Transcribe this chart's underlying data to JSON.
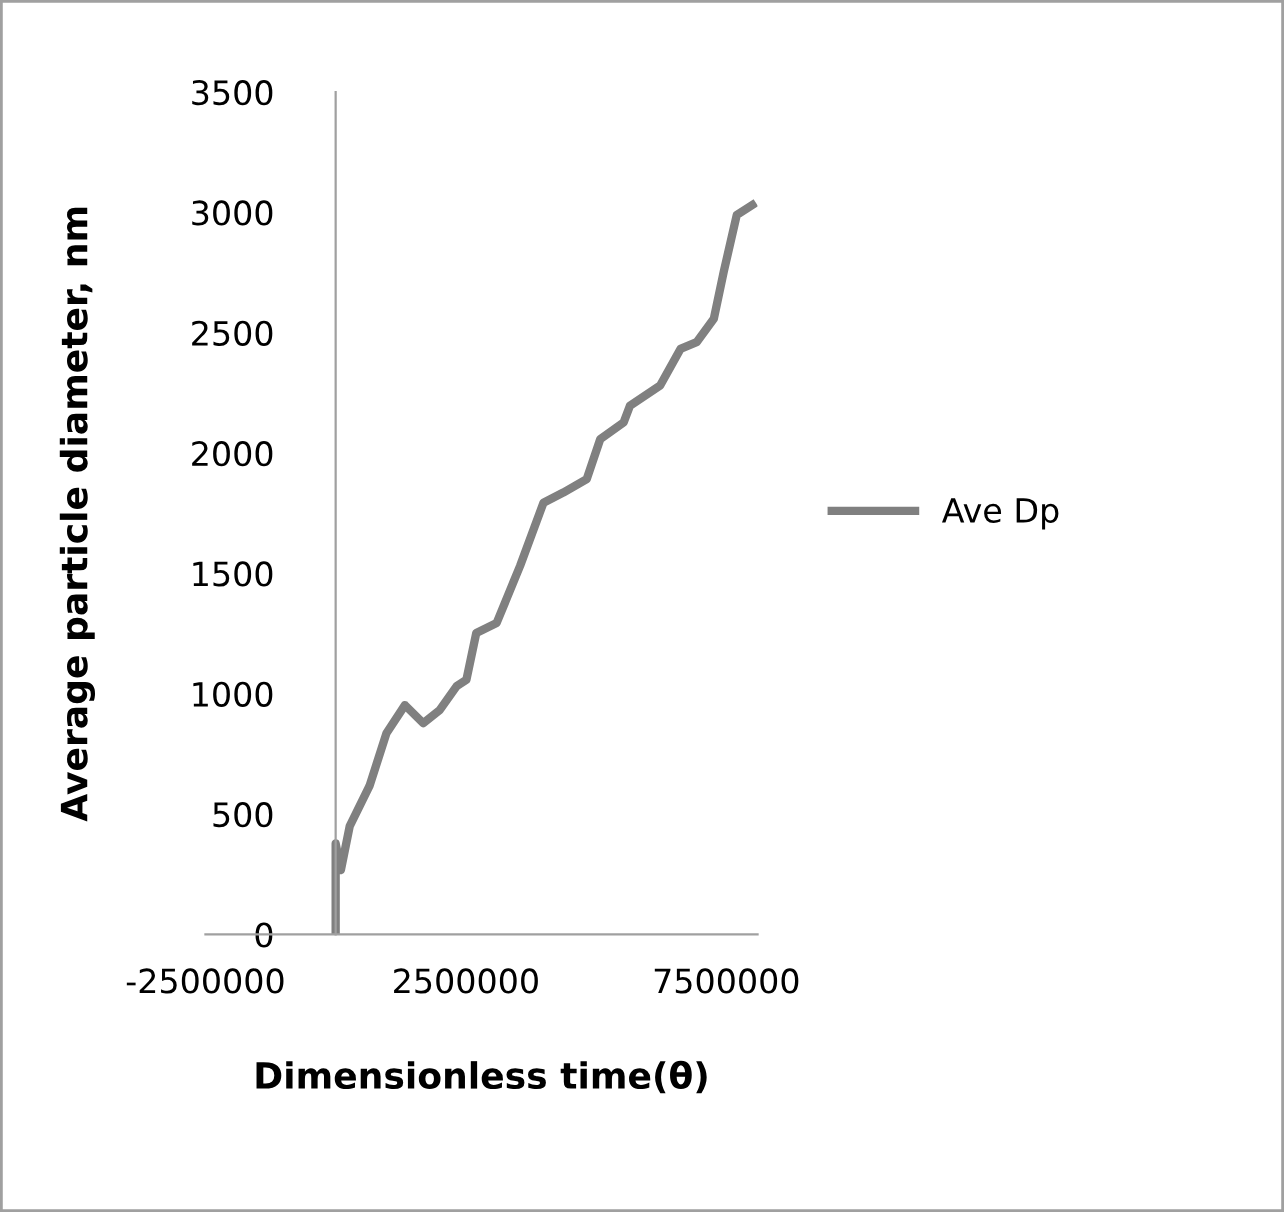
{
  "chart_data": {
    "type": "line",
    "xlabel": "Dimensionless time(θ)",
    "ylabel": "Average particle diameter, nm",
    "xlim": [
      -2500000,
      8100000
    ],
    "xticks": [
      -2500000,
      2500000,
      7500000
    ],
    "ylim": [
      0,
      3500
    ],
    "yticks": [
      0,
      500,
      1000,
      1500,
      2000,
      2500,
      3000,
      3500
    ],
    "grid": false,
    "legend": "right",
    "marker": "none",
    "line_style": "solid",
    "series": [
      {
        "name": "Ave Dp",
        "color": "#808080",
        "x": [
          0,
          0,
          100000,
          270000,
          650000,
          975000,
          1330000,
          1680000,
          2000000,
          2320000,
          2510000,
          2700000,
          3090000,
          3540000,
          3990000,
          4370000,
          4820000,
          5080000,
          5530000,
          5650000,
          6230000,
          6620000,
          6930000,
          7260000,
          7450000,
          7700000,
          8000000
        ],
        "values": [
          0,
          378,
          267,
          450,
          617,
          836,
          953,
          878,
          933,
          1031,
          1058,
          1253,
          1294,
          1531,
          1794,
          1836,
          1892,
          2058,
          2128,
          2197,
          2281,
          2433,
          2461,
          2558,
          2753,
          2989,
          3031
        ]
      }
    ]
  }
}
